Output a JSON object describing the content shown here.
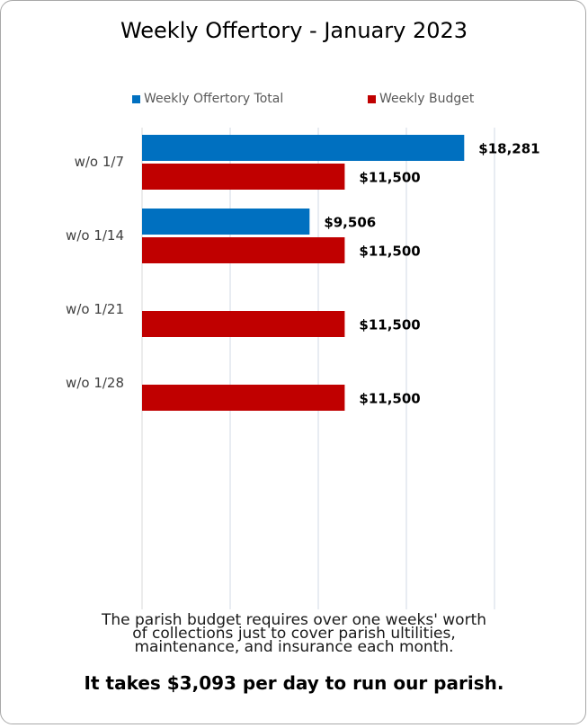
{
  "chart_data": {
    "type": "bar",
    "orientation": "horizontal",
    "title": "Weekly Offertory - January 2023",
    "categories": [
      "w/o 1/7",
      "w/o 1/14",
      "w/o 1/21",
      "w/o 1/28"
    ],
    "series": [
      {
        "name": "Weekly Offertory Total",
        "color": "#0070c0",
        "values": [
          18281,
          9506,
          null,
          null
        ],
        "labels": [
          "$18,281",
          "$9,506",
          "",
          ""
        ]
      },
      {
        "name": "Weekly Budget",
        "color": "#c00000",
        "values": [
          11500,
          11500,
          11500,
          11500
        ],
        "labels": [
          "$11,500",
          "$11,500",
          "$11,500",
          "$11,500"
        ]
      }
    ],
    "xlim": [
      0,
      25000
    ],
    "grid": "vertical gridlines",
    "legend_position": "top"
  },
  "notes": {
    "lines": [
      "The parish budget requires over one weeks' worth",
      "of collections just to cover parish ultilities,",
      "maintenance, and insurance each month."
    ],
    "headline": "It takes $3,093 per day to run our parish."
  }
}
